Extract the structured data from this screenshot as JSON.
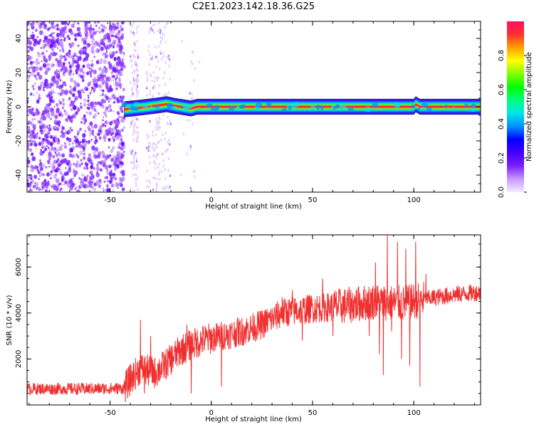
{
  "title": "C2E1.2023.142.18.36.G25",
  "chart_data": [
    {
      "type": "heatmap",
      "xlabel": "Height of straight line (km)",
      "ylabel": "Frequency (Hz)",
      "xlim": [
        -91,
        133
      ],
      "ylim": [
        -50,
        50
      ],
      "x_ticks": [
        -50,
        0,
        50,
        100
      ],
      "y_ticks": [
        -40,
        -20,
        0,
        20,
        40
      ],
      "colorbar": {
        "label": "Normalized spectral amplitude",
        "range": [
          0,
          1
        ],
        "ticks": [
          "0.0",
          "0.2",
          "0.4",
          "0.6",
          "0.8"
        ],
        "colors": [
          "#f4eaff",
          "#c79aff",
          "#7a20ff",
          "#4400ff",
          "#0000ff",
          "#0090ff",
          "#00e5e5",
          "#00ff80",
          "#00ff00",
          "#80ff00",
          "#ffff00",
          "#ffa000",
          "#ff3030",
          "#ff1060"
        ]
      },
      "noise_region_x_end": -43,
      "signal_band": {
        "x_start": -43,
        "x_end": 133,
        "centerline": [
          [
            -43,
            -1.5
          ],
          [
            -35,
            -0.5
          ],
          [
            -28,
            0.5
          ],
          [
            -22,
            1.5
          ],
          [
            -18,
            0.5
          ],
          [
            -10,
            -1
          ],
          [
            -7,
            0
          ],
          [
            0,
            0
          ],
          [
            50,
            0
          ],
          [
            100,
            0
          ],
          [
            101,
            1.5
          ],
          [
            103,
            0
          ],
          [
            133,
            0
          ]
        ]
      }
    },
    {
      "type": "line",
      "xlabel": "Height of straight line (km)",
      "ylabel": "SNR (10 * v/v)",
      "xlim": [
        -91,
        133
      ],
      "ylim": [
        0,
        7400
      ],
      "x_ticks": [
        -50,
        0,
        50,
        100
      ],
      "y_ticks": [
        2000,
        4000,
        6000
      ],
      "color": "#f03030",
      "trend": [
        [
          -91,
          700
        ],
        [
          -60,
          700
        ],
        [
          -43,
          720
        ],
        [
          -40,
          1100
        ],
        [
          -35,
          1600
        ],
        [
          -32,
          1500
        ],
        [
          -28,
          1400
        ],
        [
          -22,
          1800
        ],
        [
          -15,
          2400
        ],
        [
          -5,
          2800
        ],
        [
          5,
          3000
        ],
        [
          15,
          3200
        ],
        [
          25,
          3500
        ],
        [
          35,
          4000
        ],
        [
          50,
          4200
        ],
        [
          65,
          4300
        ],
        [
          80,
          4500
        ],
        [
          95,
          4400
        ],
        [
          105,
          4600
        ],
        [
          120,
          4800
        ],
        [
          133,
          4900
        ]
      ],
      "spikes": [
        [
          -35,
          3700
        ],
        [
          -33,
          500
        ],
        [
          -30,
          3000
        ],
        [
          -12,
          3500
        ],
        [
          -10,
          500
        ],
        [
          5,
          800
        ],
        [
          35,
          4700
        ],
        [
          40,
          5000
        ],
        [
          45,
          2800
        ],
        [
          55,
          5500
        ],
        [
          60,
          3000
        ],
        [
          78,
          3000
        ],
        [
          81,
          6200
        ],
        [
          83,
          2200
        ],
        [
          85,
          1300
        ],
        [
          87,
          7400
        ],
        [
          89,
          3200
        ],
        [
          92,
          7100
        ],
        [
          94,
          2000
        ],
        [
          96,
          6800
        ],
        [
          98,
          1700
        ],
        [
          101,
          7100
        ],
        [
          103,
          800
        ],
        [
          106,
          5700
        ]
      ]
    }
  ]
}
